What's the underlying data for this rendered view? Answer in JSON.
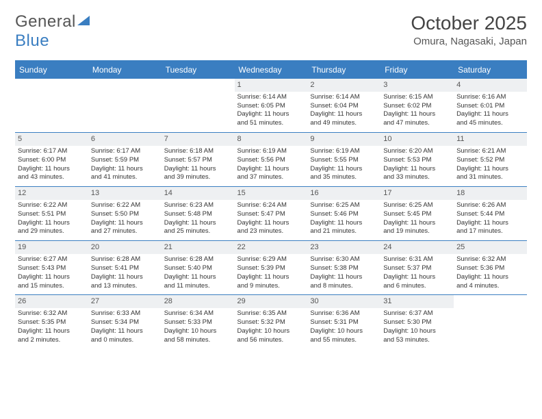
{
  "logo": {
    "word1": "General",
    "word2": "Blue"
  },
  "header": {
    "month_title": "October 2025",
    "location": "Omura, Nagasaki, Japan"
  },
  "colors": {
    "accent": "#3a7ec1",
    "day_bg": "#eef0f2",
    "text": "#333333"
  },
  "calendar": {
    "day_names": [
      "Sunday",
      "Monday",
      "Tuesday",
      "Wednesday",
      "Thursday",
      "Friday",
      "Saturday"
    ],
    "weeks": [
      [
        null,
        null,
        null,
        {
          "n": "1",
          "sunrise": "Sunrise: 6:14 AM",
          "sunset": "Sunset: 6:05 PM",
          "dl1": "Daylight: 11 hours",
          "dl2": "and 51 minutes."
        },
        {
          "n": "2",
          "sunrise": "Sunrise: 6:14 AM",
          "sunset": "Sunset: 6:04 PM",
          "dl1": "Daylight: 11 hours",
          "dl2": "and 49 minutes."
        },
        {
          "n": "3",
          "sunrise": "Sunrise: 6:15 AM",
          "sunset": "Sunset: 6:02 PM",
          "dl1": "Daylight: 11 hours",
          "dl2": "and 47 minutes."
        },
        {
          "n": "4",
          "sunrise": "Sunrise: 6:16 AM",
          "sunset": "Sunset: 6:01 PM",
          "dl1": "Daylight: 11 hours",
          "dl2": "and 45 minutes."
        }
      ],
      [
        {
          "n": "5",
          "sunrise": "Sunrise: 6:17 AM",
          "sunset": "Sunset: 6:00 PM",
          "dl1": "Daylight: 11 hours",
          "dl2": "and 43 minutes."
        },
        {
          "n": "6",
          "sunrise": "Sunrise: 6:17 AM",
          "sunset": "Sunset: 5:59 PM",
          "dl1": "Daylight: 11 hours",
          "dl2": "and 41 minutes."
        },
        {
          "n": "7",
          "sunrise": "Sunrise: 6:18 AM",
          "sunset": "Sunset: 5:57 PM",
          "dl1": "Daylight: 11 hours",
          "dl2": "and 39 minutes."
        },
        {
          "n": "8",
          "sunrise": "Sunrise: 6:19 AM",
          "sunset": "Sunset: 5:56 PM",
          "dl1": "Daylight: 11 hours",
          "dl2": "and 37 minutes."
        },
        {
          "n": "9",
          "sunrise": "Sunrise: 6:19 AM",
          "sunset": "Sunset: 5:55 PM",
          "dl1": "Daylight: 11 hours",
          "dl2": "and 35 minutes."
        },
        {
          "n": "10",
          "sunrise": "Sunrise: 6:20 AM",
          "sunset": "Sunset: 5:53 PM",
          "dl1": "Daylight: 11 hours",
          "dl2": "and 33 minutes."
        },
        {
          "n": "11",
          "sunrise": "Sunrise: 6:21 AM",
          "sunset": "Sunset: 5:52 PM",
          "dl1": "Daylight: 11 hours",
          "dl2": "and 31 minutes."
        }
      ],
      [
        {
          "n": "12",
          "sunrise": "Sunrise: 6:22 AM",
          "sunset": "Sunset: 5:51 PM",
          "dl1": "Daylight: 11 hours",
          "dl2": "and 29 minutes."
        },
        {
          "n": "13",
          "sunrise": "Sunrise: 6:22 AM",
          "sunset": "Sunset: 5:50 PM",
          "dl1": "Daylight: 11 hours",
          "dl2": "and 27 minutes."
        },
        {
          "n": "14",
          "sunrise": "Sunrise: 6:23 AM",
          "sunset": "Sunset: 5:48 PM",
          "dl1": "Daylight: 11 hours",
          "dl2": "and 25 minutes."
        },
        {
          "n": "15",
          "sunrise": "Sunrise: 6:24 AM",
          "sunset": "Sunset: 5:47 PM",
          "dl1": "Daylight: 11 hours",
          "dl2": "and 23 minutes."
        },
        {
          "n": "16",
          "sunrise": "Sunrise: 6:25 AM",
          "sunset": "Sunset: 5:46 PM",
          "dl1": "Daylight: 11 hours",
          "dl2": "and 21 minutes."
        },
        {
          "n": "17",
          "sunrise": "Sunrise: 6:25 AM",
          "sunset": "Sunset: 5:45 PM",
          "dl1": "Daylight: 11 hours",
          "dl2": "and 19 minutes."
        },
        {
          "n": "18",
          "sunrise": "Sunrise: 6:26 AM",
          "sunset": "Sunset: 5:44 PM",
          "dl1": "Daylight: 11 hours",
          "dl2": "and 17 minutes."
        }
      ],
      [
        {
          "n": "19",
          "sunrise": "Sunrise: 6:27 AM",
          "sunset": "Sunset: 5:43 PM",
          "dl1": "Daylight: 11 hours",
          "dl2": "and 15 minutes."
        },
        {
          "n": "20",
          "sunrise": "Sunrise: 6:28 AM",
          "sunset": "Sunset: 5:41 PM",
          "dl1": "Daylight: 11 hours",
          "dl2": "and 13 minutes."
        },
        {
          "n": "21",
          "sunrise": "Sunrise: 6:28 AM",
          "sunset": "Sunset: 5:40 PM",
          "dl1": "Daylight: 11 hours",
          "dl2": "and 11 minutes."
        },
        {
          "n": "22",
          "sunrise": "Sunrise: 6:29 AM",
          "sunset": "Sunset: 5:39 PM",
          "dl1": "Daylight: 11 hours",
          "dl2": "and 9 minutes."
        },
        {
          "n": "23",
          "sunrise": "Sunrise: 6:30 AM",
          "sunset": "Sunset: 5:38 PM",
          "dl1": "Daylight: 11 hours",
          "dl2": "and 8 minutes."
        },
        {
          "n": "24",
          "sunrise": "Sunrise: 6:31 AM",
          "sunset": "Sunset: 5:37 PM",
          "dl1": "Daylight: 11 hours",
          "dl2": "and 6 minutes."
        },
        {
          "n": "25",
          "sunrise": "Sunrise: 6:32 AM",
          "sunset": "Sunset: 5:36 PM",
          "dl1": "Daylight: 11 hours",
          "dl2": "and 4 minutes."
        }
      ],
      [
        {
          "n": "26",
          "sunrise": "Sunrise: 6:32 AM",
          "sunset": "Sunset: 5:35 PM",
          "dl1": "Daylight: 11 hours",
          "dl2": "and 2 minutes."
        },
        {
          "n": "27",
          "sunrise": "Sunrise: 6:33 AM",
          "sunset": "Sunset: 5:34 PM",
          "dl1": "Daylight: 11 hours",
          "dl2": "and 0 minutes."
        },
        {
          "n": "28",
          "sunrise": "Sunrise: 6:34 AM",
          "sunset": "Sunset: 5:33 PM",
          "dl1": "Daylight: 10 hours",
          "dl2": "and 58 minutes."
        },
        {
          "n": "29",
          "sunrise": "Sunrise: 6:35 AM",
          "sunset": "Sunset: 5:32 PM",
          "dl1": "Daylight: 10 hours",
          "dl2": "and 56 minutes."
        },
        {
          "n": "30",
          "sunrise": "Sunrise: 6:36 AM",
          "sunset": "Sunset: 5:31 PM",
          "dl1": "Daylight: 10 hours",
          "dl2": "and 55 minutes."
        },
        {
          "n": "31",
          "sunrise": "Sunrise: 6:37 AM",
          "sunset": "Sunset: 5:30 PM",
          "dl1": "Daylight: 10 hours",
          "dl2": "and 53 minutes."
        },
        null
      ]
    ]
  }
}
